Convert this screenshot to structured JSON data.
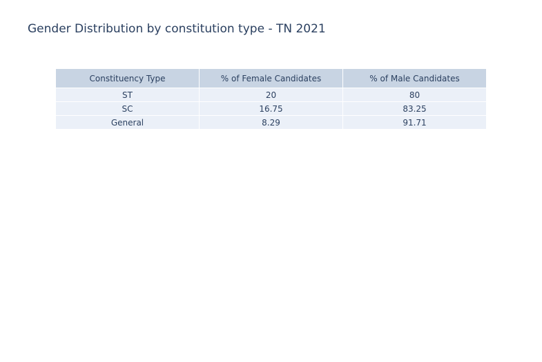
{
  "chart_data": {
    "type": "table",
    "title": "Gender Distribution by constitution type - TN 2021",
    "columns": [
      "Constituency Type",
      "% of Female Candidates",
      "% of Male Candidates"
    ],
    "rows": [
      [
        "ST",
        "20",
        "80"
      ],
      [
        "SC",
        "16.75",
        "83.25"
      ],
      [
        "General",
        "8.29",
        "91.71"
      ]
    ],
    "colors": {
      "header_fill": "#c8d4e3",
      "cell_fill": "#ebf0f8",
      "text": "#2a3f5f"
    }
  }
}
